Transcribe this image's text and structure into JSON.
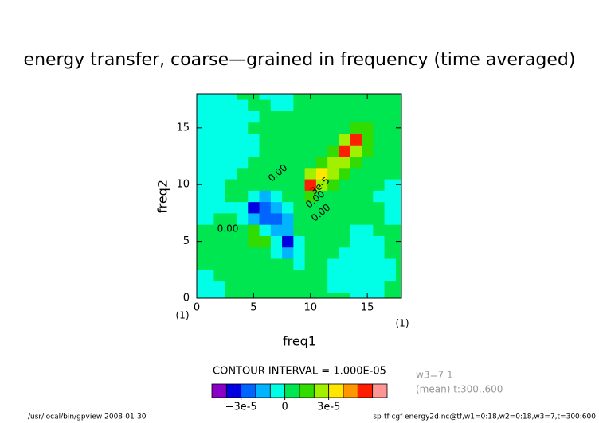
{
  "chart_data": {
    "type": "contour",
    "title": "energy transfer, coarse—grained in frequency (time averaged)",
    "x_label": "freq1",
    "y_label": "freq2",
    "x_unit": "(1)",
    "y_unit": "(1)",
    "xlim": [
      0,
      18
    ],
    "ylim": [
      0,
      18
    ],
    "xticks": [
      0,
      5,
      10,
      15
    ],
    "yticks": [
      0,
      5,
      10,
      15
    ],
    "contour_interval_text": "CONTOUR INTERVAL = 1.000E-05",
    "info_lines": [
      "w3=7 1",
      "(mean) t:300..600"
    ],
    "footer_left": "/usr/local/bin/gpview  2008-01-30",
    "footer_right": "sp-tf-cgf-energy2d.nc@tf,w1=0:18,w2=0:18,w3=7,t=300:600",
    "annotations": [
      "0.00",
      "0.00",
      "0.00",
      "0.00",
      "3e-5"
    ],
    "levels": [
      -5e-05,
      -4e-05,
      -3e-05,
      -2e-05,
      -1e-05,
      0,
      1e-05,
      2e-05,
      3e-05,
      4e-05,
      5e-05,
      6e-05,
      7e-05
    ],
    "colors": [
      "#8a00c8",
      "#0000e0",
      "#0064ff",
      "#00b4ff",
      "#00ffe6",
      "#00e650",
      "#32dc00",
      "#a0f000",
      "#ffe600",
      "#ff9600",
      "#ff1e00",
      "#ff9696"
    ],
    "colorbar_ticks": [
      {
        "value": -3e-05,
        "label": "−3e-5"
      },
      0,
      {
        "value": 3e-05,
        "label": "3e-5"
      }
    ],
    "z": [
      [
        -5e-06,
        -5e-06,
        -5e-06,
        5e-06,
        5e-06,
        5e-06,
        5e-06,
        5e-06,
        5e-06,
        5e-06,
        5e-06,
        5e-06,
        5e-06,
        5e-06,
        -5e-06,
        -5e-06,
        -5e-06,
        5e-06,
        5e-06
      ],
      [
        -5e-06,
        -5e-06,
        -5e-06,
        5e-06,
        5e-06,
        5e-06,
        5e-06,
        5e-06,
        5e-06,
        5e-06,
        5e-06,
        5e-06,
        -5e-06,
        -5e-06,
        -5e-06,
        -5e-06,
        -5e-06,
        5e-06,
        5e-06
      ],
      [
        -5e-06,
        -5e-06,
        5e-06,
        5e-06,
        5e-06,
        5e-06,
        5e-06,
        5e-06,
        5e-06,
        5e-06,
        5e-06,
        5e-06,
        -5e-06,
        -5e-06,
        -5e-06,
        -5e-06,
        -5e-06,
        -5e-06,
        5e-06
      ],
      [
        5e-06,
        5e-06,
        5e-06,
        5e-06,
        5e-06,
        5e-06,
        5e-06,
        5e-06,
        5e-06,
        -5e-06,
        5e-06,
        5e-06,
        -5e-06,
        -5e-06,
        -5e-06,
        -5e-06,
        -5e-06,
        -5e-06,
        5e-06
      ],
      [
        5e-06,
        5e-06,
        5e-06,
        5e-06,
        5e-06,
        5e-06,
        5e-06,
        -5e-06,
        -1.5e-05,
        -5e-06,
        5e-06,
        5e-06,
        5e-06,
        -5e-06,
        -5e-06,
        -5e-06,
        -5e-06,
        5e-06,
        5e-06
      ],
      [
        5e-06,
        5e-06,
        5e-06,
        5e-06,
        5e-06,
        1.5e-05,
        1.5e-05,
        -5e-06,
        -3.5e-05,
        -5e-06,
        5e-06,
        5e-06,
        5e-06,
        5e-06,
        -5e-06,
        -5e-06,
        -5e-06,
        5e-06,
        5e-06
      ],
      [
        5e-06,
        5e-06,
        5e-06,
        5e-06,
        5e-06,
        1.5e-05,
        -5e-06,
        -1.5e-05,
        -1.5e-05,
        5e-06,
        5e-06,
        5e-06,
        5e-06,
        5e-06,
        -5e-06,
        -5e-06,
        5e-06,
        5e-06,
        5e-06
      ],
      [
        -5e-06,
        -5e-06,
        5e-06,
        5e-06,
        -5e-06,
        -1.5e-05,
        -2.5e-05,
        -2.5e-05,
        -1.5e-05,
        5e-06,
        5e-06,
        5e-06,
        5e-06,
        5e-06,
        5e-06,
        5e-06,
        5e-06,
        -5e-06,
        -5e-06
      ],
      [
        -5e-06,
        -5e-06,
        -5e-06,
        -5e-06,
        -5e-06,
        -3.5e-05,
        -2.5e-05,
        -1.5e-05,
        -5e-06,
        5e-06,
        5e-06,
        5e-06,
        5e-06,
        5e-06,
        5e-06,
        5e-06,
        5e-06,
        -5e-06,
        -5e-06
      ],
      [
        -5e-06,
        -5e-06,
        -5e-06,
        5e-06,
        5e-06,
        -5e-06,
        -1.5e-05,
        -5e-06,
        5e-06,
        5e-06,
        1.5e-05,
        5e-06,
        5e-06,
        5e-06,
        5e-06,
        5e-06,
        -5e-06,
        -5e-06,
        -5e-06
      ],
      [
        -5e-06,
        -5e-06,
        -5e-06,
        5e-06,
        5e-06,
        5e-06,
        5e-06,
        5e-06,
        5e-06,
        5e-06,
        5.5e-05,
        2.5e-05,
        1.5e-05,
        5e-06,
        5e-06,
        5e-06,
        5e-06,
        -5e-06,
        -5e-06
      ],
      [
        -5e-06,
        -5e-06,
        -5e-06,
        -5e-06,
        5e-06,
        5e-06,
        5e-06,
        5e-06,
        5e-06,
        5e-06,
        2.5e-05,
        3.5e-05,
        2.5e-05,
        1.5e-05,
        5e-06,
        5e-06,
        5e-06,
        5e-06,
        5e-06
      ],
      [
        -5e-06,
        -5e-06,
        -5e-06,
        -5e-06,
        -5e-06,
        5e-06,
        5e-06,
        5e-06,
        5e-06,
        5e-06,
        5e-06,
        1.5e-05,
        2.5e-05,
        2.5e-05,
        1.5e-05,
        5e-06,
        5e-06,
        5e-06,
        5e-06
      ],
      [
        -5e-06,
        -5e-06,
        -5e-06,
        -5e-06,
        -5e-06,
        -5e-06,
        5e-06,
        5e-06,
        5e-06,
        5e-06,
        5e-06,
        5e-06,
        1.5e-05,
        5.5e-05,
        2.5e-05,
        1.5e-05,
        5e-06,
        5e-06,
        5e-06
      ],
      [
        -5e-06,
        -5e-06,
        -5e-06,
        -5e-06,
        -5e-06,
        -5e-06,
        5e-06,
        5e-06,
        5e-06,
        5e-06,
        5e-06,
        5e-06,
        5e-06,
        2.5e-05,
        5.5e-05,
        1.5e-05,
        5e-06,
        5e-06,
        5e-06
      ],
      [
        -5e-06,
        -5e-06,
        -5e-06,
        -5e-06,
        -5e-06,
        5e-06,
        5e-06,
        5e-06,
        5e-06,
        5e-06,
        5e-06,
        5e-06,
        5e-06,
        5e-06,
        1.5e-05,
        1.5e-05,
        5e-06,
        5e-06,
        5e-06
      ],
      [
        -5e-06,
        -5e-06,
        -5e-06,
        -5e-06,
        -5e-06,
        -5e-06,
        5e-06,
        5e-06,
        5e-06,
        5e-06,
        5e-06,
        5e-06,
        5e-06,
        5e-06,
        5e-06,
        5e-06,
        5e-06,
        5e-06,
        5e-06
      ],
      [
        -5e-06,
        -5e-06,
        -5e-06,
        -5e-06,
        -5e-06,
        5e-06,
        5e-06,
        -5e-06,
        -5e-06,
        5e-06,
        5e-06,
        5e-06,
        5e-06,
        5e-06,
        5e-06,
        5e-06,
        5e-06,
        5e-06,
        5e-06
      ],
      [
        -5e-06,
        -5e-06,
        -5e-06,
        -5e-06,
        5e-06,
        5e-06,
        -5e-06,
        -5e-06,
        -5e-06,
        5e-06,
        5e-06,
        5e-06,
        5e-06,
        5e-06,
        5e-06,
        5e-06,
        5e-06,
        5e-06,
        5e-06
      ]
    ]
  }
}
